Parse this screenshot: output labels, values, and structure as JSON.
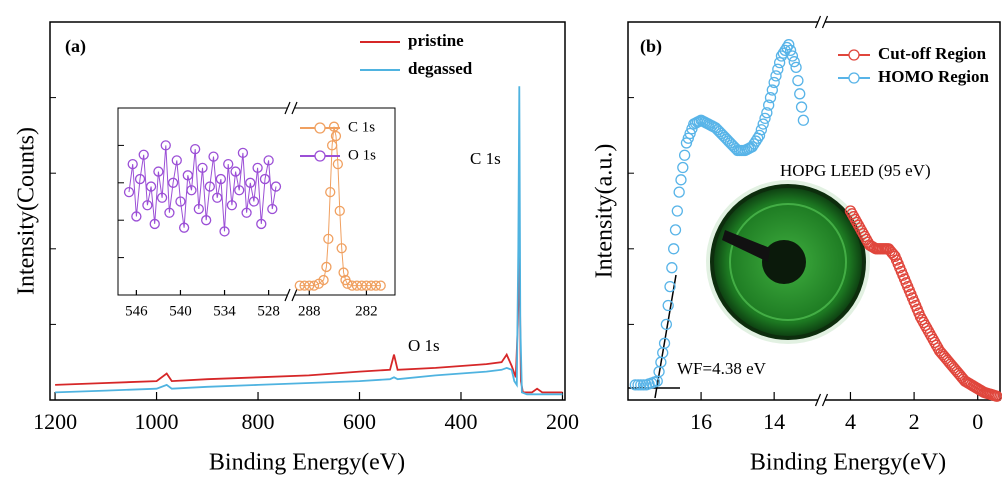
{
  "chart_data": [
    {
      "type": "line",
      "panel_label": "(a)",
      "xlabel": "Binding Energy(eV)",
      "ylabel": "Intensity(Counts)",
      "xlim": [
        1210,
        195
      ],
      "ylim": [
        0,
        100
      ],
      "xticks": [
        1200,
        1000,
        800,
        600,
        400,
        200
      ],
      "legend": "top-right",
      "annotations": [
        "C 1s",
        "O 1s"
      ],
      "series": [
        {
          "name": "pristine",
          "color": "#d62728",
          "x": [
            1200,
            1100,
            1000,
            980,
            970,
            900,
            800,
            700,
            600,
            540,
            532,
            525,
            450,
            400,
            350,
            320,
            310,
            300,
            292,
            288,
            285,
            282,
            278,
            260,
            250,
            240,
            200
          ],
          "values": [
            4,
            4.5,
            5,
            7,
            5,
            5.5,
            6,
            6.5,
            7.5,
            8,
            12,
            8,
            8.5,
            9,
            9.5,
            10,
            12,
            9,
            6,
            20,
            40,
            5,
            2,
            2,
            3,
            2,
            2
          ]
        },
        {
          "name": "degassed",
          "color": "#4fb3e0",
          "x": [
            1200,
            1100,
            1000,
            980,
            970,
            900,
            800,
            700,
            600,
            540,
            532,
            525,
            450,
            400,
            350,
            320,
            310,
            300,
            295,
            290,
            287,
            285,
            283,
            280,
            270,
            250,
            200
          ],
          "values": [
            2,
            2.5,
            3,
            4,
            3,
            3.5,
            4,
            4.5,
            5,
            5.5,
            6,
            5.5,
            6.5,
            7,
            7.5,
            8,
            8.5,
            8,
            5,
            4,
            40,
            83,
            20,
            2,
            1.5,
            1.5,
            1.5
          ]
        }
      ]
    },
    {
      "type": "scatter",
      "xlim": [
        [
          548.5,
          525.5
        ],
        [
          289.5,
          279
        ]
      ],
      "ylim": [
        0,
        100
      ],
      "xticks": [
        [
          546,
          540,
          534,
          528
        ],
        [
          288,
          282
        ]
      ],
      "legend": "top-right",
      "series": [
        {
          "name": "C 1s",
          "color": "#f0a060",
          "x": [
            289,
            288.5,
            288,
            287.5,
            287,
            286.5,
            286.2,
            286,
            285.8,
            285.6,
            285.4,
            285.2,
            285,
            284.8,
            284.6,
            284.4,
            284.2,
            284,
            283.5,
            283,
            282.5,
            282,
            281.5,
            281,
            280.5
          ],
          "values": [
            5,
            5,
            5,
            5,
            6,
            8,
            15,
            30,
            55,
            80,
            90,
            85,
            70,
            45,
            25,
            12,
            8,
            6,
            5,
            5,
            5,
            5,
            5,
            5,
            5
          ]
        },
        {
          "name": "O 1s",
          "color": "#9b4fd6",
          "x": [
            547,
            546.5,
            546,
            545.5,
            545,
            544.5,
            544,
            543.5,
            543,
            542.5,
            542,
            541.5,
            541,
            540.5,
            540,
            539.5,
            539,
            538.5,
            538,
            537.5,
            537,
            536.5,
            536,
            535.5,
            535,
            534.5,
            534,
            533.5,
            533,
            532.5,
            532,
            531.5,
            531,
            530.5,
            530,
            529.5,
            529,
            528.5,
            528,
            527.5,
            527
          ],
          "values": [
            55,
            70,
            42,
            62,
            75,
            48,
            58,
            38,
            66,
            52,
            80,
            44,
            60,
            72,
            50,
            36,
            64,
            56,
            78,
            46,
            68,
            40,
            58,
            74,
            52,
            62,
            34,
            70,
            48,
            66,
            56,
            76,
            44,
            60,
            50,
            68,
            38,
            62,
            72,
            46,
            58
          ]
        }
      ]
    },
    {
      "type": "scatter",
      "panel_label": "(b)",
      "xlabel": "Binding Energy(eV)",
      "ylabel": "Intensity(a.u.)",
      "xlim": [
        [
          18,
          12.8
        ],
        [
          4.8,
          -0.7
        ]
      ],
      "ylim": [
        0,
        100
      ],
      "xticks": [
        [
          16,
          14
        ],
        [
          4,
          2,
          0
        ]
      ],
      "legend": "top-right",
      "annotations": [
        "WF=4.38 eV",
        "HOPG LEED (95 eV)"
      ],
      "series": [
        {
          "name": "Cut-off Region",
          "color": "#e0463c",
          "x": [
            4,
            3.8,
            3.6,
            3.4,
            3.2,
            3,
            2.8,
            2.6,
            2.4,
            2.2,
            2,
            1.8,
            1.6,
            1.4,
            1.2,
            1,
            0.8,
            0.6,
            0.4,
            0.2,
            0,
            -0.2,
            -0.4,
            -0.6
          ],
          "values": [
            50,
            47,
            44,
            41,
            40,
            40,
            40,
            38,
            34,
            30,
            26,
            22,
            19,
            16,
            13,
            11,
            9,
            7,
            5,
            4,
            3,
            2,
            1.5,
            1
          ]
        },
        {
          "name": "HOMO Region",
          "color": "#58b4e8",
          "x": [
            17.8,
            17.5,
            17.2,
            17,
            16.8,
            16.6,
            16.4,
            16.2,
            16,
            15.8,
            15.6,
            15.4,
            15.2,
            15,
            14.8,
            14.6,
            14.4,
            14.2,
            14,
            13.8,
            13.6,
            13.4,
            13.2
          ],
          "values": [
            4,
            4,
            5,
            15,
            35,
            55,
            68,
            73,
            74,
            73,
            72,
            70,
            68,
            66,
            66,
            67,
            70,
            76,
            84,
            91,
            94,
            88,
            74
          ]
        }
      ]
    }
  ]
}
